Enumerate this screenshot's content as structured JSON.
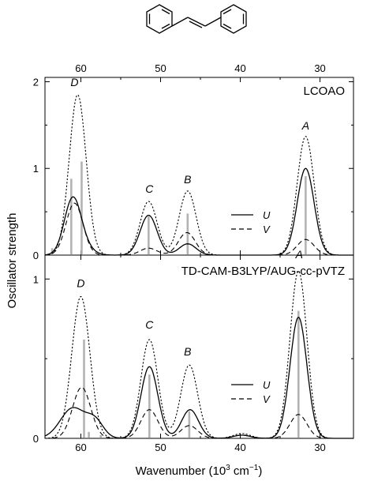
{
  "x_axis": {
    "label": "Wavenumber (10",
    "label_sup": "3",
    "label_unit": " cm",
    "label_sup2": "−1",
    "label_close": ")",
    "ticks": [
      60,
      50,
      40,
      30
    ],
    "range": [
      64.5,
      25.8
    ],
    "reversed": true
  },
  "y_axis": {
    "label": "Oscillator strength"
  },
  "chart_data": [
    {
      "type": "line",
      "panel": "top",
      "title": "LCOAO",
      "ylim": [
        0,
        2.05
      ],
      "yticks": [
        0,
        1,
        2
      ],
      "legend": {
        "entries": [
          "U",
          "V"
        ],
        "placement": "center-right"
      },
      "peak_labels": [
        {
          "text": "D",
          "x": 60.8,
          "y": 1.95
        },
        {
          "text": "C",
          "x": 51.4,
          "y": 0.72
        },
        {
          "text": "B",
          "x": 46.6,
          "y": 0.83
        },
        {
          "text": "A",
          "x": 31.8,
          "y": 1.45
        }
      ],
      "sticks": [
        {
          "x": 63.6,
          "f": 0.08
        },
        {
          "x": 61.2,
          "f": 0.88
        },
        {
          "x": 59.9,
          "f": 1.08
        },
        {
          "x": 51.5,
          "f": 0.45
        },
        {
          "x": 46.6,
          "f": 0.48
        },
        {
          "x": 31.8,
          "f": 0.91
        }
      ],
      "series": [
        {
          "name": "U",
          "style": "solid",
          "peaks": [
            [
              61.0,
              0.66,
              1.5
            ],
            [
              59.2,
              0.05,
              1.5
            ],
            [
              51.5,
              0.46,
              1.5
            ],
            [
              46.6,
              0.13,
              1.5
            ],
            [
              31.8,
              1.0,
              1.5
            ]
          ]
        },
        {
          "name": "V",
          "style": "dashed",
          "peaks": [
            [
              60.8,
              0.6,
              1.5
            ],
            [
              51.5,
              0.08,
              1.5
            ],
            [
              46.7,
              0.26,
              1.5
            ],
            [
              31.8,
              0.18,
              1.5
            ]
          ]
        },
        {
          "name": "",
          "style": "dotted",
          "peaks": [
            [
              60.4,
              1.85,
              1.5
            ],
            [
              51.5,
              0.62,
              1.5
            ],
            [
              46.6,
              0.74,
              1.5
            ],
            [
              31.8,
              1.37,
              1.5
            ]
          ]
        }
      ]
    },
    {
      "type": "line",
      "panel": "bottom",
      "title": "TD-CAM-B3LYP/AUG-cc-pVTZ",
      "ylim": [
        0,
        1.15
      ],
      "yticks": [
        0,
        1
      ],
      "legend": {
        "entries": [
          "U",
          "V"
        ],
        "placement": "center-right"
      },
      "peak_labels": [
        {
          "text": "D",
          "x": 60.0,
          "y": 0.95
        },
        {
          "text": "C",
          "x": 51.4,
          "y": 0.69
        },
        {
          "text": "B",
          "x": 46.6,
          "y": 0.52
        },
        {
          "text": "A",
          "x": 32.6,
          "y": 1.13
        }
      ],
      "sticks": [
        {
          "x": 59.6,
          "f": 0.62
        },
        {
          "x": 59.0,
          "f": 0.04
        },
        {
          "x": 57.5,
          "f": 0.02
        },
        {
          "x": 51.4,
          "f": 0.4
        },
        {
          "x": 46.4,
          "f": 0.17
        },
        {
          "x": 32.7,
          "f": 0.8
        }
      ],
      "series": [
        {
          "name": "U",
          "style": "solid",
          "peaks": [
            [
              61.0,
              0.19,
              2.2
            ],
            [
              58.2,
              0.1,
              1.5
            ],
            [
              51.4,
              0.45,
              1.5
            ],
            [
              46.3,
              0.18,
              1.5
            ],
            [
              39.8,
              0.02,
              1.5
            ],
            [
              32.7,
              0.76,
              1.5
            ]
          ]
        },
        {
          "name": "V",
          "style": "dashed",
          "peaks": [
            [
              59.9,
              0.32,
              1.6
            ],
            [
              51.4,
              0.18,
              1.5
            ],
            [
              46.4,
              0.08,
              1.5
            ],
            [
              39.8,
              0.02,
              1.5
            ],
            [
              32.7,
              0.15,
              1.5
            ]
          ]
        },
        {
          "name": "",
          "style": "dotted",
          "peaks": [
            [
              60.0,
              0.89,
              1.6
            ],
            [
              51.4,
              0.62,
              1.5
            ],
            [
              46.4,
              0.46,
              1.5
            ],
            [
              39.8,
              0.03,
              1.5
            ],
            [
              32.7,
              1.05,
              1.5
            ]
          ]
        }
      ]
    }
  ]
}
